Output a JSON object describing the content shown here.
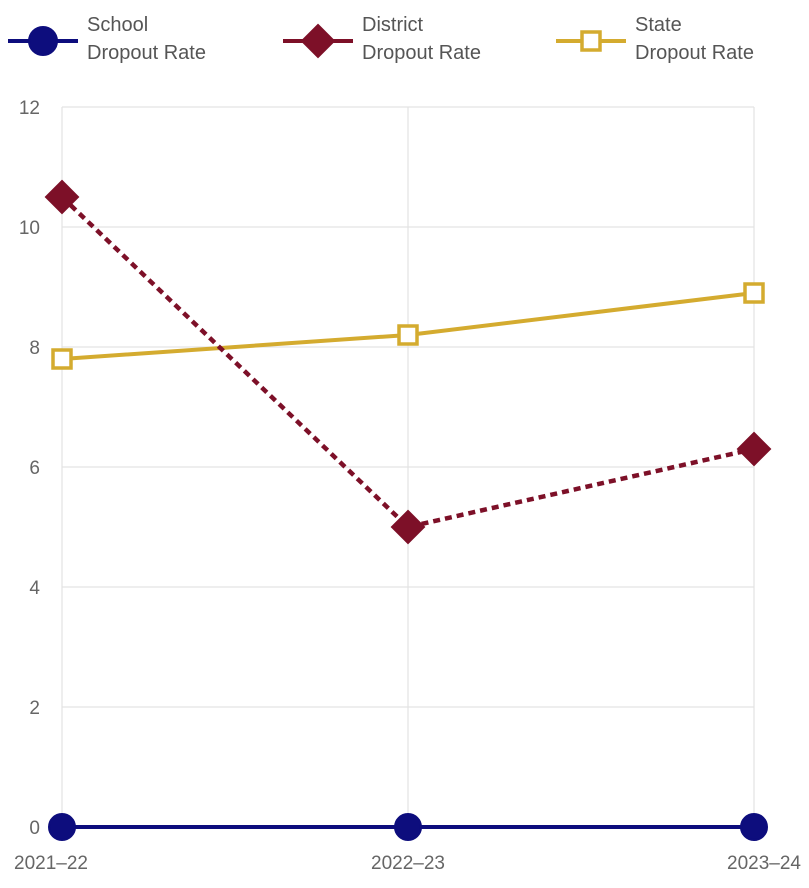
{
  "chart_data": {
    "type": "line",
    "categories": [
      "2021–22",
      "2022–23",
      "2023–24"
    ],
    "ylim": [
      0,
      12
    ],
    "yticks": [
      "0",
      "2",
      "4",
      "6",
      "8",
      "10",
      "12"
    ],
    "grid": true,
    "legend": "top",
    "series": [
      {
        "name_lines": [
          "School",
          "Dropout Rate"
        ],
        "values": [
          0,
          0,
          0
        ],
        "color": "#0d0d7d",
        "marker": "circle-filled",
        "line_style": "solid"
      },
      {
        "name_lines": [
          "District",
          "Dropout Rate"
        ],
        "values": [
          10.5,
          5.0,
          6.3
        ],
        "color": "#7d1028",
        "marker": "diamond-filled",
        "line_style": "dashed"
      },
      {
        "name_lines": [
          "State",
          "Dropout Rate"
        ],
        "values": [
          7.8,
          8.2,
          8.9
        ],
        "color": "#d4ab2f",
        "marker": "square-open",
        "line_style": "solid"
      }
    ]
  }
}
